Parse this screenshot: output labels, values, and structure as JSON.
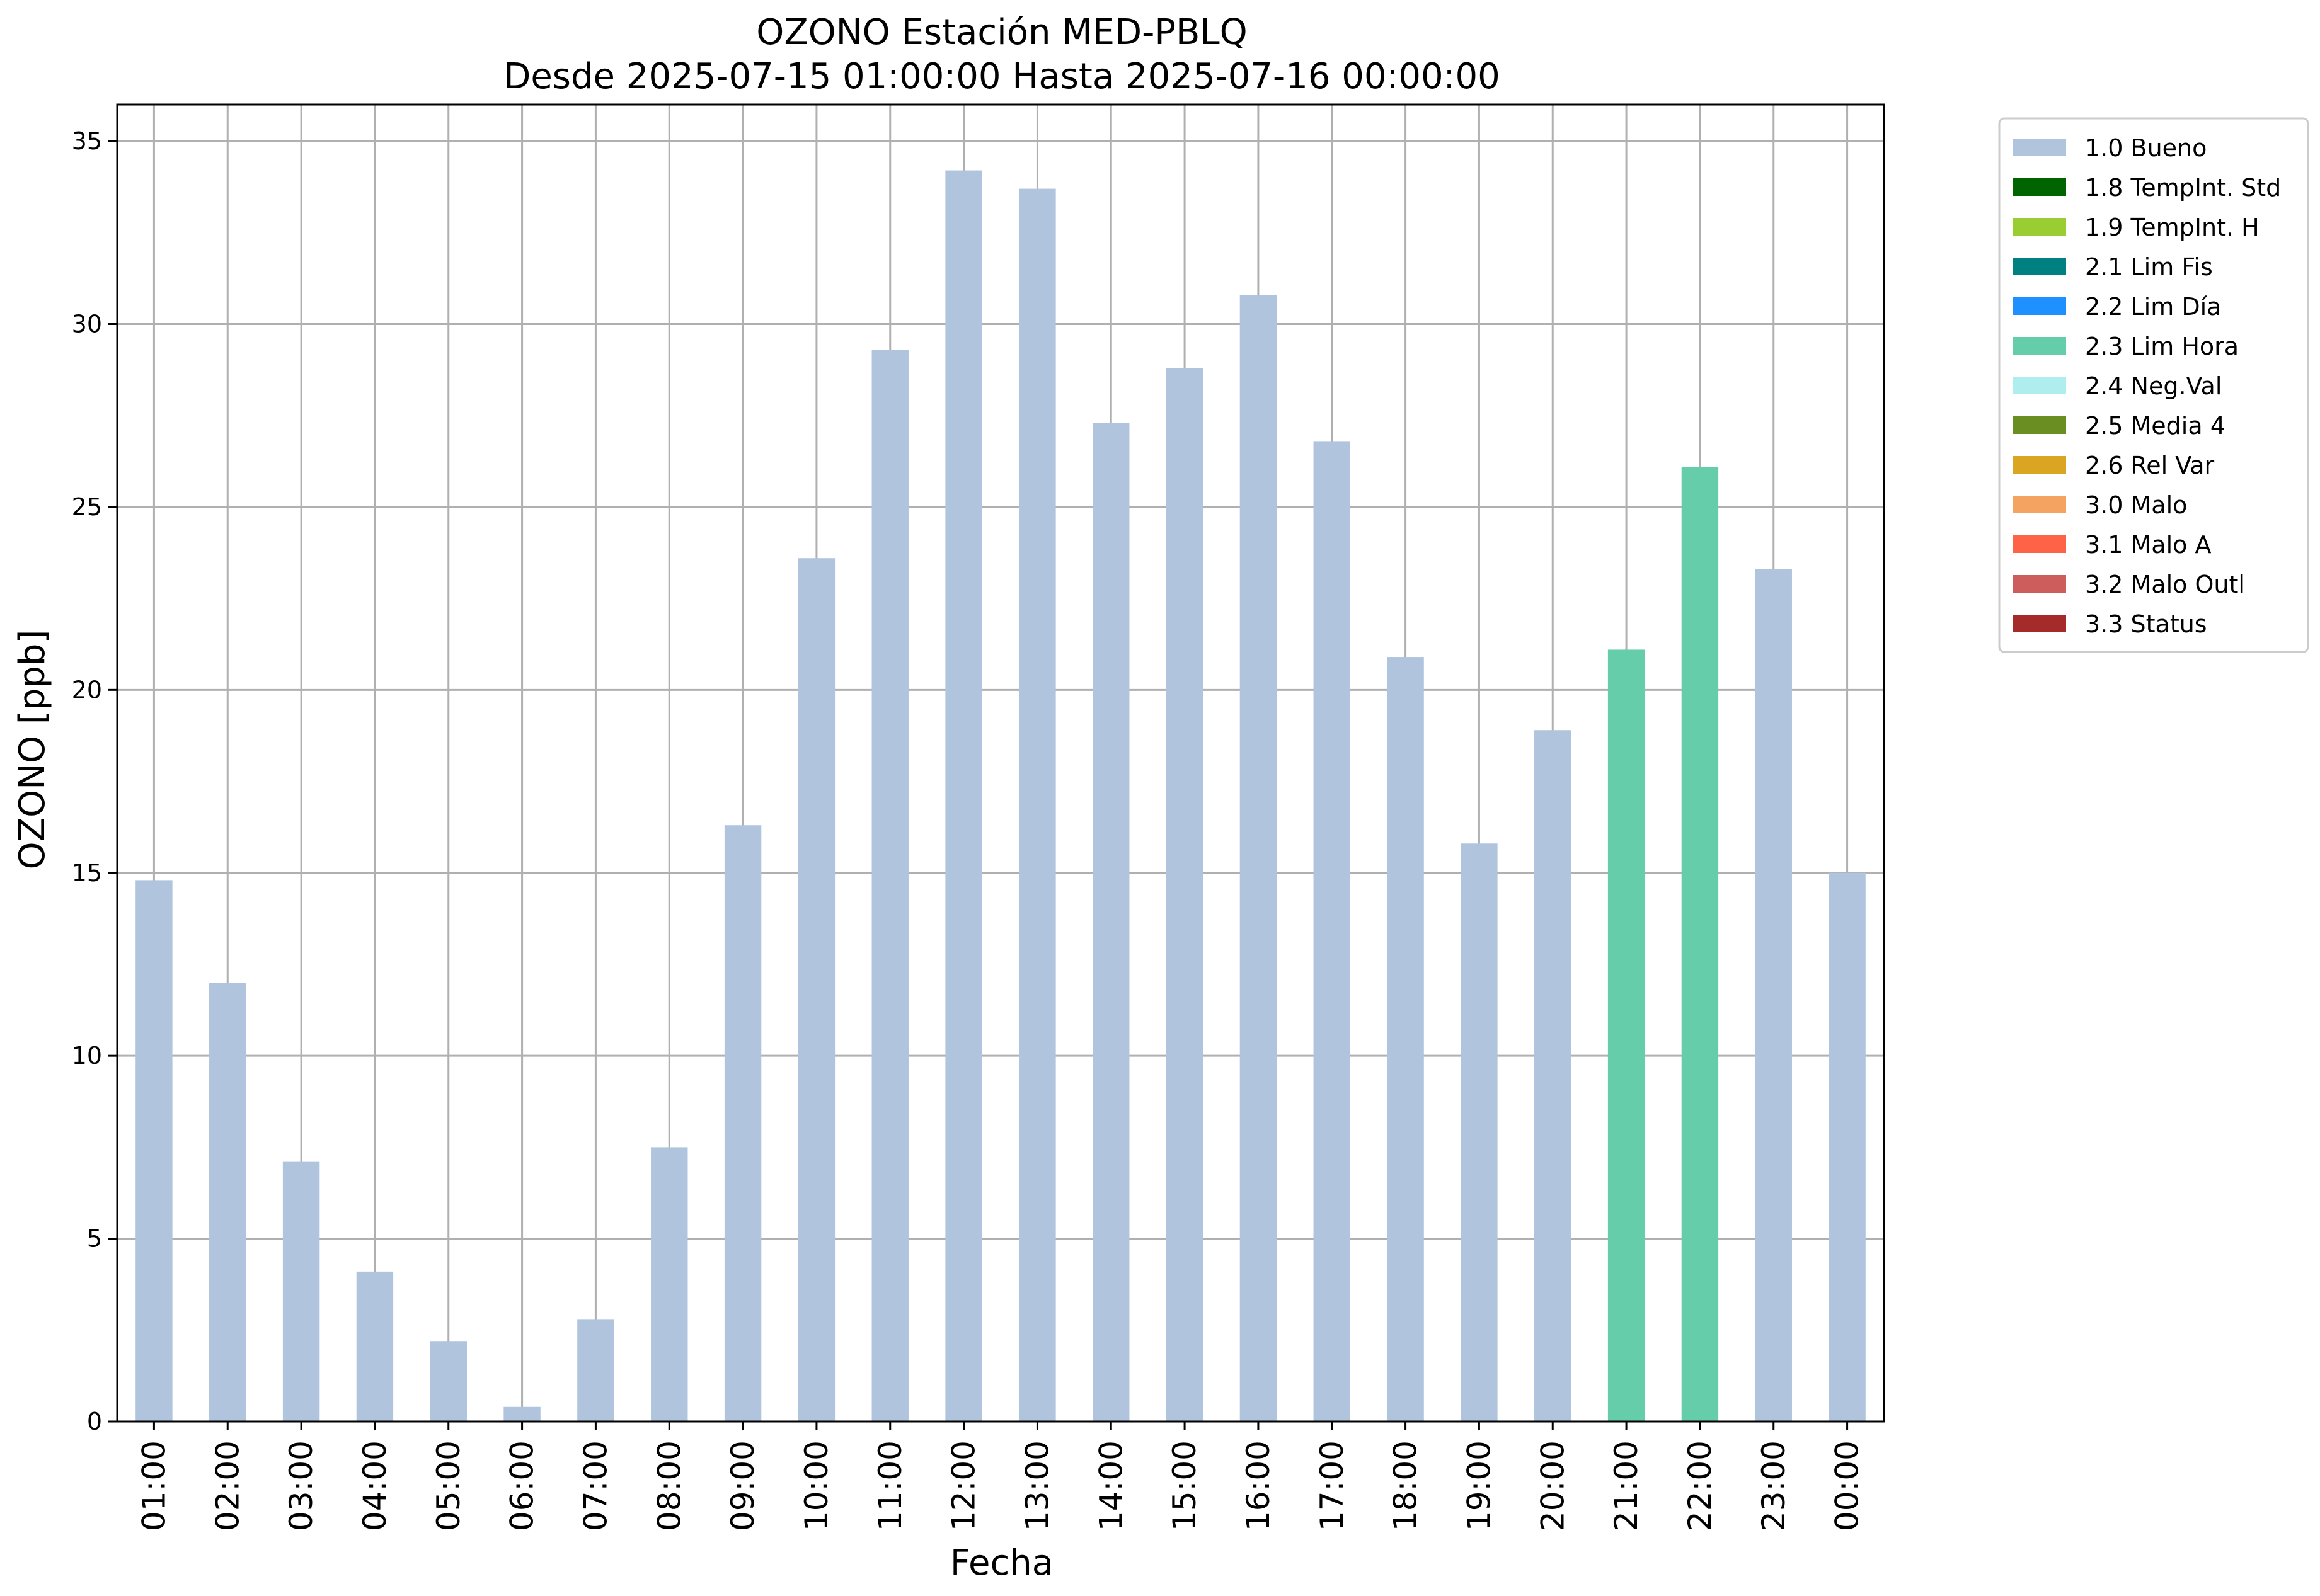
{
  "chart_data": {
    "type": "bar",
    "title": "OZONO Estación MED-PBLQ",
    "subtitle": "Desde 2025-07-15 01:00:00 Hasta 2025-07-16 00:00:00",
    "xlabel": "Fecha",
    "ylabel": "OZONO [ppb]",
    "ylim": [
      0,
      36
    ],
    "yticks": [
      0,
      5,
      10,
      15,
      20,
      25,
      30,
      35
    ],
    "grid": true,
    "legend_position": "outside-right-top",
    "categories": [
      "01:00",
      "02:00",
      "03:00",
      "04:00",
      "05:00",
      "06:00",
      "07:00",
      "08:00",
      "09:00",
      "10:00",
      "11:00",
      "12:00",
      "13:00",
      "14:00",
      "15:00",
      "16:00",
      "17:00",
      "18:00",
      "19:00",
      "20:00",
      "21:00",
      "22:00",
      "23:00",
      "00:00"
    ],
    "values": [
      14.8,
      12.0,
      7.1,
      4.1,
      2.2,
      0.4,
      2.8,
      7.5,
      16.3,
      23.6,
      29.3,
      34.2,
      33.7,
      27.3,
      28.8,
      30.8,
      26.8,
      20.9,
      15.8,
      18.9,
      21.1,
      26.1,
      23.3,
      15.0
    ],
    "flags": [
      "1.0 Bueno",
      "1.0 Bueno",
      "1.0 Bueno",
      "1.0 Bueno",
      "1.0 Bueno",
      "1.0 Bueno",
      "1.0 Bueno",
      "1.0 Bueno",
      "1.0 Bueno",
      "1.0 Bueno",
      "1.0 Bueno",
      "1.0 Bueno",
      "1.0 Bueno",
      "1.0 Bueno",
      "1.0 Bueno",
      "1.0 Bueno",
      "1.0 Bueno",
      "1.0 Bueno",
      "1.0 Bueno",
      "1.0 Bueno",
      "2.3 Lim Hora",
      "2.3 Lim Hora",
      "1.0 Bueno",
      "1.0 Bueno"
    ],
    "legend": [
      {
        "name": "1.0 Bueno",
        "color": "#b0c4de"
      },
      {
        "name": "1.8 TempInt. Std",
        "color": "#006400"
      },
      {
        "name": "1.9 TempInt. H",
        "color": "#9acd32"
      },
      {
        "name": "2.1 Lim Fis",
        "color": "#008080"
      },
      {
        "name": "2.2 Lim Día",
        "color": "#1e90ff"
      },
      {
        "name": "2.3 Lim Hora",
        "color": "#66cdaa"
      },
      {
        "name": "2.4 Neg.Val",
        "color": "#afeeee"
      },
      {
        "name": "2.5 Media 4",
        "color": "#6b8e23"
      },
      {
        "name": "2.6 Rel Var",
        "color": "#daa520"
      },
      {
        "name": "3.0 Malo",
        "color": "#f4a460"
      },
      {
        "name": "3.1 Malo A",
        "color": "#ff6347"
      },
      {
        "name": "3.2 Malo Outl",
        "color": "#cd5c5c"
      },
      {
        "name": "3.3 Status",
        "color": "#a52a2a"
      }
    ]
  }
}
